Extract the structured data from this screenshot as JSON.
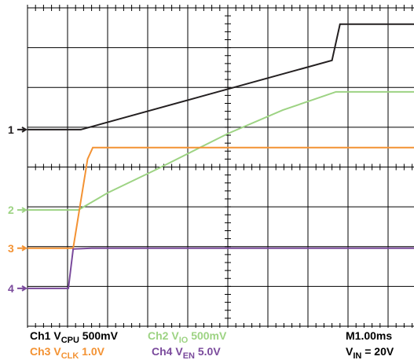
{
  "chart_data": {
    "type": "line",
    "xlim": [
      0,
      10
    ],
    "ylim": [
      0,
      8
    ],
    "xticks": [
      0,
      1,
      2,
      3,
      4,
      5,
      6,
      7,
      8,
      9,
      10
    ],
    "yticks": [
      0,
      1,
      2,
      3,
      4,
      5,
      6,
      7,
      8
    ],
    "grid": true,
    "series": [
      {
        "name": "1",
        "color": "#231f20",
        "x": [
          0,
          1.33,
          7.6,
          7.8,
          10
        ],
        "values": [
          4.94,
          4.94,
          6.68,
          7.59,
          7.59
        ]
      },
      {
        "name": "2",
        "color": "#9dd383",
        "x": [
          0,
          1.27,
          2,
          3.24,
          5,
          6.37,
          7.7,
          10
        ],
        "values": [
          2.92,
          2.92,
          3.35,
          3.95,
          4.84,
          5.43,
          5.89,
          5.89
        ]
      },
      {
        "name": "3",
        "color": "#f39233",
        "x": [
          0,
          1.14,
          1.5,
          1.63,
          10
        ],
        "values": [
          1.96,
          1.96,
          4.2,
          4.49,
          4.49
        ]
      },
      {
        "name": "4",
        "color": "#7a4a9c",
        "x": [
          0,
          1.02,
          1.14,
          1.6,
          10
        ],
        "values": [
          0.95,
          0.95,
          1.94,
          1.96,
          1.96
        ]
      }
    ],
    "footer": [
      {
        "prefix": "Ch1 V",
        "sub": "CPU",
        "scale": " 500mV",
        "color": "#000000"
      },
      {
        "prefix": "Ch2 V",
        "sub": "IO",
        "scale": " 500mV",
        "color": "#9dd383"
      },
      {
        "prefix": "Ch3 V",
        "sub": "CLK",
        "scale": " 1.0V",
        "color": "#f39233"
      },
      {
        "prefix": "Ch4  V",
        "sub": "EN",
        "scale": " 5.0V",
        "color": "#7a4a9c"
      },
      {
        "prefix": "M1.00ms",
        "sub": "",
        "scale": "",
        "color": "#000000"
      },
      {
        "prefix": "V",
        "sub": "IN",
        "scale": " = 20V",
        "color": "#000000"
      }
    ]
  }
}
